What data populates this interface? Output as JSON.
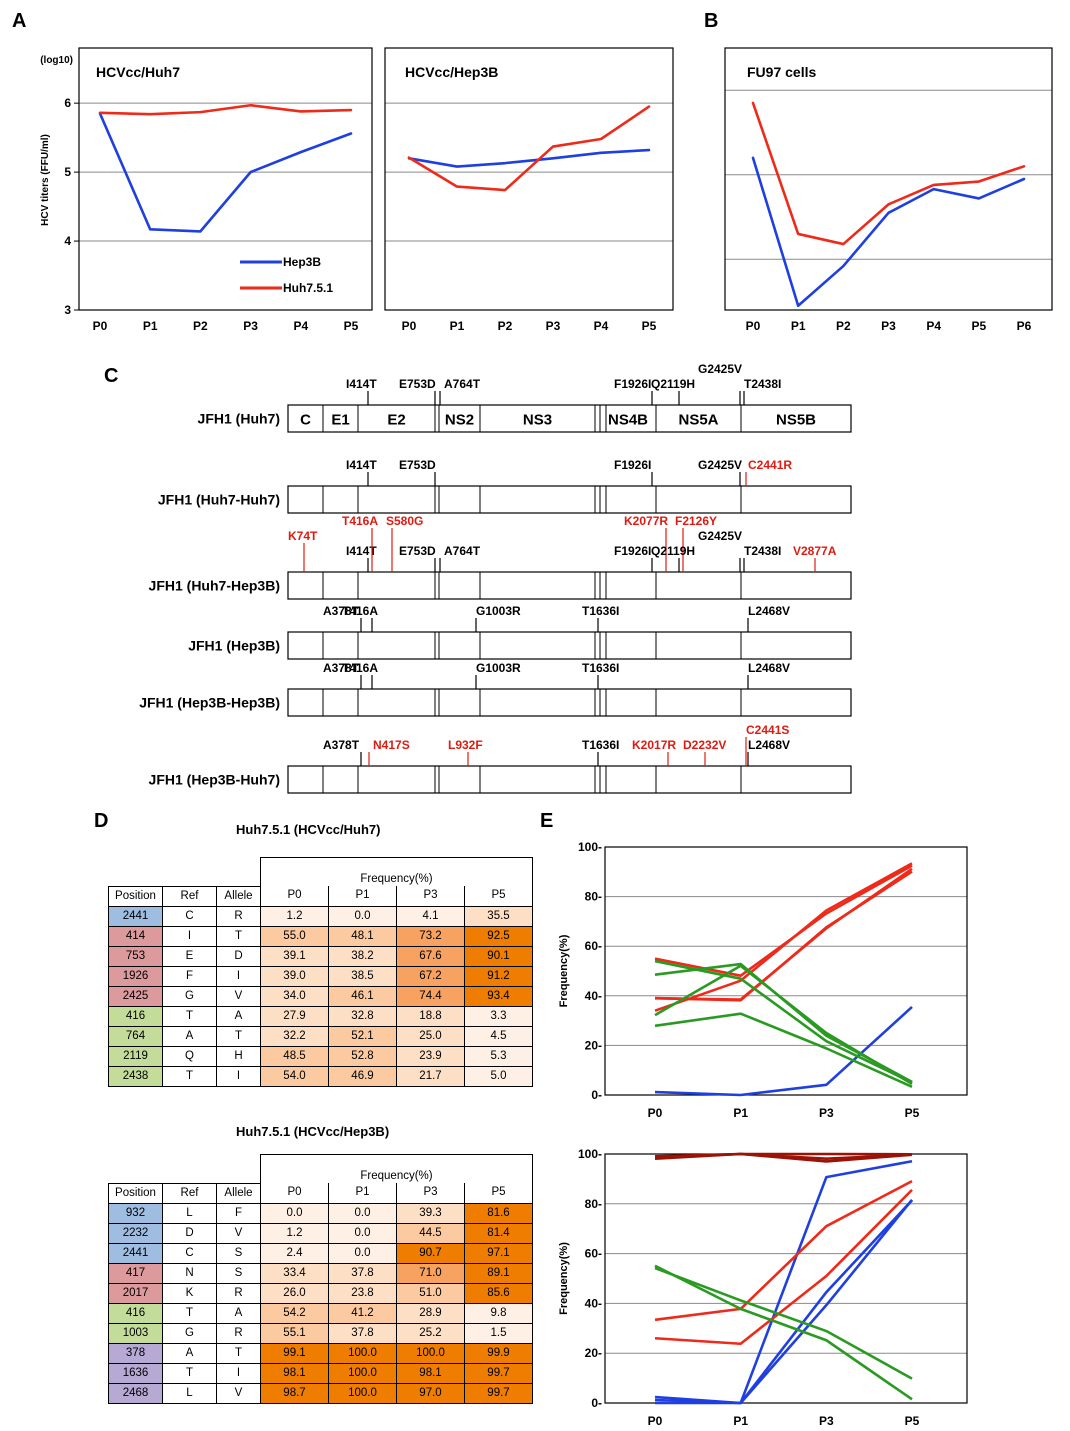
{
  "panel_letters": [
    "A",
    "B",
    "C",
    "D",
    "E"
  ],
  "colors": {
    "hep3b": "#1f3fe0",
    "huh": "#ee2a1a",
    "green": "#2a9a22",
    "darkred": "#9b1206",
    "blue_pos": "#9ebde0",
    "red_pos": "#dc9a9c",
    "green_pos": "#c4dc9a",
    "purple_pos": "#b6a9d4",
    "c0": "#fef0e4",
    "c1": "#fddfc6",
    "c2": "#fbcaa0",
    "c3": "#f7a261",
    "c4": "#ee7d02"
  },
  "chart_data": [
    {
      "id": "A1",
      "type": "line",
      "title": "HCVcc/Huh7",
      "ylabel": "HCV titers (FFU/ml)",
      "yunit": "(log10)",
      "categories": [
        "P0",
        "P1",
        "P2",
        "P3",
        "P4",
        "P5"
      ],
      "ylim": [
        3,
        6.8
      ],
      "yticks": [
        "3",
        "4",
        "5",
        "6"
      ],
      "series": [
        {
          "name": "Hep3B",
          "color": "#1f3fe0",
          "values": [
            5.85,
            4.17,
            4.14,
            5.0,
            5.29,
            5.56
          ]
        },
        {
          "name": "Huh7.5.1",
          "color": "#ee2a1a",
          "values": [
            5.86,
            5.84,
            5.87,
            5.97,
            5.88,
            5.9
          ]
        }
      ]
    },
    {
      "id": "A2",
      "type": "line",
      "title": "HCVcc/Hep3B",
      "categories": [
        "P0",
        "P1",
        "P2",
        "P3",
        "P4",
        "P5"
      ],
      "ylim": [
        3,
        6.8
      ],
      "series": [
        {
          "color": "#1f3fe0",
          "values": [
            5.2,
            5.08,
            5.13,
            5.2,
            5.28,
            5.32
          ]
        },
        {
          "color": "#ee2a1a",
          "values": [
            5.21,
            4.79,
            4.74,
            5.37,
            5.48,
            5.95
          ]
        }
      ]
    },
    {
      "id": "B",
      "type": "line",
      "title": "FU97 cells",
      "categories": [
        "P0",
        "P1",
        "P2",
        "P3",
        "P4",
        "P5",
        "P6"
      ],
      "ylim": [
        3.4,
        6.5
      ],
      "series": [
        {
          "color": "#1f3fe0",
          "values": [
            5.2,
            3.45,
            3.92,
            4.55,
            4.83,
            4.72,
            4.95
          ]
        },
        {
          "color": "#ee2a1a",
          "values": [
            5.85,
            4.3,
            4.18,
            4.65,
            4.88,
            4.92,
            5.1
          ]
        }
      ]
    },
    {
      "id": "E1",
      "type": "line",
      "ylabel": "Frequency(%)",
      "categories": [
        "P0",
        "P1",
        "P3",
        "P5"
      ],
      "ylim": [
        0,
        100
      ],
      "yticks": [
        "0-",
        "20-",
        "40-",
        "60-",
        "80-",
        "100-"
      ],
      "series": [
        {
          "color": "#1f3fe0",
          "values": [
            1.2,
            0.0,
            4.1,
            35.5
          ]
        },
        {
          "color": "#ee2a1a",
          "values": [
            55.0,
            48.1,
            73.2,
            92.5
          ]
        },
        {
          "color": "#ee2a1a",
          "values": [
            39.1,
            38.2,
            67.6,
            90.1
          ]
        },
        {
          "color": "#ee2a1a",
          "values": [
            39.0,
            38.5,
            67.2,
            91.2
          ]
        },
        {
          "color": "#ee2a1a",
          "values": [
            34.0,
            46.1,
            74.4,
            93.4
          ]
        },
        {
          "color": "#2a9a22",
          "values": [
            27.9,
            32.8,
            18.8,
            3.3
          ]
        },
        {
          "color": "#2a9a22",
          "values": [
            32.2,
            52.1,
            25.0,
            4.5
          ]
        },
        {
          "color": "#2a9a22",
          "values": [
            48.5,
            52.8,
            23.9,
            5.3
          ]
        },
        {
          "color": "#2a9a22",
          "values": [
            54.0,
            46.9,
            21.7,
            5.0
          ]
        }
      ]
    },
    {
      "id": "E2",
      "type": "line",
      "ylabel": "Frequency(%)",
      "categories": [
        "P0",
        "P1",
        "P3",
        "P5"
      ],
      "ylim": [
        0,
        100
      ],
      "yticks": [
        "0-",
        "20-",
        "40-",
        "60-",
        "80-",
        "100-"
      ],
      "series": [
        {
          "color": "#1f3fe0",
          "values": [
            0.0,
            0.0,
            39.3,
            81.6
          ]
        },
        {
          "color": "#1f3fe0",
          "values": [
            1.2,
            0.0,
            44.5,
            81.4
          ]
        },
        {
          "color": "#1f3fe0",
          "values": [
            2.4,
            0.0,
            90.7,
            97.1
          ]
        },
        {
          "color": "#ee2a1a",
          "values": [
            33.4,
            37.8,
            71.0,
            89.1
          ]
        },
        {
          "color": "#ee2a1a",
          "values": [
            26.0,
            23.8,
            51.0,
            85.6
          ]
        },
        {
          "color": "#2a9a22",
          "values": [
            54.2,
            41.2,
            28.9,
            9.8
          ]
        },
        {
          "color": "#2a9a22",
          "values": [
            55.1,
            37.8,
            25.2,
            1.5
          ]
        },
        {
          "color": "#9b1206",
          "values": [
            99.1,
            100.0,
            100.0,
            99.9
          ]
        },
        {
          "color": "#9b1206",
          "values": [
            98.1,
            100.0,
            98.1,
            99.7
          ]
        },
        {
          "color": "#9b1206",
          "values": [
            98.7,
            100.0,
            97.0,
            99.7
          ]
        }
      ]
    }
  ],
  "genome": {
    "regions": [
      "C",
      "E1",
      "E2",
      "NS2",
      "NS3",
      "NS4B",
      "NS5A",
      "NS5B"
    ],
    "rows": [
      {
        "label": "JFH1 (Huh7)",
        "labelled": true,
        "muts": [
          {
            "t": "I414T",
            "c": "#000000",
            "lvl": 0
          },
          {
            "t": "E753D",
            "c": "#000000",
            "lvl": 0
          },
          {
            "t": "A764T",
            "c": "#000000",
            "lvl": 0
          },
          {
            "t": "F1926I",
            "c": "#000000",
            "lvl": 0
          },
          {
            "t": "Q2119H",
            "c": "#000000",
            "lvl": 0
          },
          {
            "t": "G2425V",
            "c": "#000000",
            "lvl": 1
          },
          {
            "t": "T2438I",
            "c": "#000000",
            "lvl": 0
          }
        ]
      },
      {
        "label": "JFH1 (Huh7-Huh7)",
        "muts": [
          {
            "t": "I414T",
            "c": "#000000",
            "lvl": 0
          },
          {
            "t": "E753D",
            "c": "#000000",
            "lvl": 0
          },
          {
            "t": "F1926I",
            "c": "#000000",
            "lvl": 0
          },
          {
            "t": "G2425V",
            "c": "#000000",
            "lvl": 0
          },
          {
            "t": "C2441R",
            "c": "#e01a10",
            "lvl": 0
          }
        ]
      },
      {
        "label": "JFH1 (Huh7-Hep3B)",
        "muts": [
          {
            "t": "K74T",
            "c": "#e01a10",
            "lvl": 1
          },
          {
            "t": "I414T",
            "c": "#000000",
            "lvl": 0
          },
          {
            "t": "T416A",
            "c": "#e01a10",
            "lvl": 2
          },
          {
            "t": "S580G",
            "c": "#e01a10",
            "lvl": 2
          },
          {
            "t": "E753D",
            "c": "#000000",
            "lvl": 0
          },
          {
            "t": "A764T",
            "c": "#000000",
            "lvl": 0
          },
          {
            "t": "F1926I",
            "c": "#000000",
            "lvl": 0
          },
          {
            "t": "K2077R",
            "c": "#e01a10",
            "lvl": 2
          },
          {
            "t": "F2126Y",
            "c": "#e01a10",
            "lvl": 2
          },
          {
            "t": "Q2119H",
            "c": "#000000",
            "lvl": 0
          },
          {
            "t": "G2425V",
            "c": "#000000",
            "lvl": 1
          },
          {
            "t": "T2438I",
            "c": "#000000",
            "lvl": 0
          },
          {
            "t": "V2877A",
            "c": "#e01a10",
            "lvl": 0
          }
        ]
      },
      {
        "label": "JFH1 (Hep3B)",
        "muts": [
          {
            "t": "A378T",
            "c": "#000000",
            "lvl": 0
          },
          {
            "t": "T416A",
            "c": "#000000",
            "lvl": 0
          },
          {
            "t": "G1003R",
            "c": "#000000",
            "lvl": 0
          },
          {
            "t": "T1636I",
            "c": "#000000",
            "lvl": 0
          },
          {
            "t": "L2468V",
            "c": "#000000",
            "lvl": 0
          }
        ]
      },
      {
        "label": "JFH1 (Hep3B-Hep3B)",
        "muts": [
          {
            "t": "A378T",
            "c": "#000000",
            "lvl": 0
          },
          {
            "t": "T416A",
            "c": "#000000",
            "lvl": 0
          },
          {
            "t": "G1003R",
            "c": "#000000",
            "lvl": 0
          },
          {
            "t": "T1636I",
            "c": "#000000",
            "lvl": 0
          },
          {
            "t": "L2468V",
            "c": "#000000",
            "lvl": 0
          }
        ]
      },
      {
        "label": "JFH1 (Hep3B-Huh7)",
        "muts": [
          {
            "t": "A378T",
            "c": "#000000",
            "lvl": 0
          },
          {
            "t": "N417S",
            "c": "#e01a10",
            "lvl": 0
          },
          {
            "t": "L932F",
            "c": "#e01a10",
            "lvl": 0
          },
          {
            "t": "T1636I",
            "c": "#000000",
            "lvl": 0
          },
          {
            "t": "K2017R",
            "c": "#e01a10",
            "lvl": 0
          },
          {
            "t": "D2232V",
            "c": "#e01a10",
            "lvl": 0
          },
          {
            "t": "C2441S",
            "c": "#e01a10",
            "lvl": 1
          },
          {
            "t": "L2468V",
            "c": "#000000",
            "lvl": 0
          }
        ]
      }
    ]
  },
  "tables": [
    {
      "title": "Huh7.5.1 (HCVcc/Huh7)",
      "freq_header": "Frequency(%)",
      "cols": [
        "Position",
        "Ref",
        "Allele",
        "P0",
        "P1",
        "P3",
        "P5"
      ],
      "rows": [
        {
          "g": "blue",
          "v": [
            "2441",
            "C",
            "R",
            "1.2",
            "0.0",
            "4.1",
            "35.5"
          ]
        },
        {
          "g": "red",
          "v": [
            "414",
            "I",
            "T",
            "55.0",
            "48.1",
            "73.2",
            "92.5"
          ]
        },
        {
          "g": "red",
          "v": [
            "753",
            "E",
            "D",
            "39.1",
            "38.2",
            "67.6",
            "90.1"
          ]
        },
        {
          "g": "red",
          "v": [
            "1926",
            "F",
            "I",
            "39.0",
            "38.5",
            "67.2",
            "91.2"
          ]
        },
        {
          "g": "red",
          "v": [
            "2425",
            "G",
            "V",
            "34.0",
            "46.1",
            "74.4",
            "93.4"
          ]
        },
        {
          "g": "green",
          "v": [
            "416",
            "T",
            "A",
            "27.9",
            "32.8",
            "18.8",
            "3.3"
          ]
        },
        {
          "g": "green",
          "v": [
            "764",
            "A",
            "T",
            "32.2",
            "52.1",
            "25.0",
            "4.5"
          ]
        },
        {
          "g": "green",
          "v": [
            "2119",
            "Q",
            "H",
            "48.5",
            "52.8",
            "23.9",
            "5.3"
          ]
        },
        {
          "g": "green",
          "v": [
            "2438",
            "T",
            "I",
            "54.0",
            "46.9",
            "21.7",
            "5.0"
          ]
        }
      ]
    },
    {
      "title": "Huh7.5.1 (HCVcc/Hep3B)",
      "freq_header": "Frequency(%)",
      "cols": [
        "Position",
        "Ref",
        "Allele",
        "P0",
        "P1",
        "P3",
        "P5"
      ],
      "rows": [
        {
          "g": "blue",
          "v": [
            "932",
            "L",
            "F",
            "0.0",
            "0.0",
            "39.3",
            "81.6"
          ]
        },
        {
          "g": "blue",
          "v": [
            "2232",
            "D",
            "V",
            "1.2",
            "0.0",
            "44.5",
            "81.4"
          ]
        },
        {
          "g": "blue",
          "v": [
            "2441",
            "C",
            "S",
            "2.4",
            "0.0",
            "90.7",
            "97.1"
          ]
        },
        {
          "g": "red",
          "v": [
            "417",
            "N",
            "S",
            "33.4",
            "37.8",
            "71.0",
            "89.1"
          ]
        },
        {
          "g": "red",
          "v": [
            "2017",
            "K",
            "R",
            "26.0",
            "23.8",
            "51.0",
            "85.6"
          ]
        },
        {
          "g": "green",
          "v": [
            "416",
            "T",
            "A",
            "54.2",
            "41.2",
            "28.9",
            "9.8"
          ]
        },
        {
          "g": "green",
          "v": [
            "1003",
            "G",
            "R",
            "55.1",
            "37.8",
            "25.2",
            "1.5"
          ]
        },
        {
          "g": "purple",
          "v": [
            "378",
            "A",
            "T",
            "99.1",
            "100.0",
            "100.0",
            "99.9"
          ]
        },
        {
          "g": "purple",
          "v": [
            "1636",
            "T",
            "I",
            "98.1",
            "100.0",
            "98.1",
            "99.7"
          ]
        },
        {
          "g": "purple",
          "v": [
            "2468",
            "L",
            "V",
            "98.7",
            "100.0",
            "97.0",
            "99.7"
          ]
        }
      ]
    }
  ]
}
